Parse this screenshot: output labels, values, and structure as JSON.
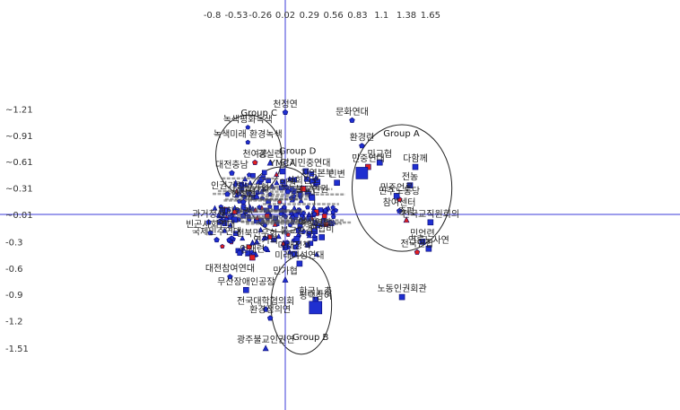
{
  "chart_data": {
    "type": "scatter",
    "title": "",
    "xlabel": "",
    "ylabel": "",
    "xlim": [
      -0.93,
      1.72
    ],
    "ylim": [
      -1.58,
      1.42
    ],
    "x_ticks": [
      {
        "v": -0.8,
        "label": "-0.8"
      },
      {
        "v": -0.53,
        "label": "-0.53"
      },
      {
        "v": -0.26,
        "label": "-0.26"
      },
      {
        "v": 0.02,
        "label": "0.02"
      },
      {
        "v": 0.29,
        "label": "0.29"
      },
      {
        "v": 0.56,
        "label": "0.56"
      },
      {
        "v": 0.83,
        "label": "0.83"
      },
      {
        "v": 1.1,
        "label": "1.1"
      },
      {
        "v": 1.38,
        "label": "1.38"
      },
      {
        "v": 1.65,
        "label": "1.65"
      }
    ],
    "y_ticks": [
      {
        "v": 1.21,
        "label": "~1.21"
      },
      {
        "v": 0.91,
        "label": "~0.91"
      },
      {
        "v": 0.61,
        "label": "~0.61"
      },
      {
        "v": 0.31,
        "label": "~0.31"
      },
      {
        "v": 0.01,
        "label": "~0.01"
      },
      {
        "v": -0.3,
        "label": "-0.3"
      },
      {
        "v": -0.6,
        "label": "-0.6"
      },
      {
        "v": -0.9,
        "label": "-0.9"
      },
      {
        "v": -1.2,
        "label": "-1.2"
      },
      {
        "v": -1.51,
        "label": "-1.51"
      }
    ],
    "axis_lines": {
      "x": 0.02,
      "y": 0.01
    },
    "groups": [
      {
        "name": "Group A",
        "cx": 1.33,
        "cy": 0.31,
        "rx": 0.56,
        "ry": 0.72,
        "label_x": 1.12,
        "label_y": 0.9
      },
      {
        "name": "Group B",
        "cx": 0.2,
        "cy": -1.02,
        "rx": 0.34,
        "ry": 0.56,
        "label_x": 0.1,
        "label_y": -1.42
      },
      {
        "name": "Group C",
        "cx": -0.39,
        "cy": 0.68,
        "rx": 0.37,
        "ry": 0.46,
        "label_x": -0.48,
        "label_y": 1.13
      },
      {
        "name": "Group D",
        "cx": -0.02,
        "cy": 0.18,
        "rx": 0.37,
        "ry": 0.37,
        "label_x": -0.05,
        "label_y": 0.7
      }
    ],
    "points": [
      {
        "label": "천정연",
        "x": 0.02,
        "y": 1.17,
        "shape": "pentagon",
        "color": "blue",
        "size": 6
      },
      {
        "label": "문화연대",
        "x": 0.77,
        "y": 1.08,
        "shape": "pentagon",
        "color": "blue",
        "size": 6
      },
      {
        "label": "녹색평화녹색",
        "x": -0.4,
        "y": 1.0,
        "shape": "pentagon",
        "color": "blue",
        "size": 5
      },
      {
        "label": "녹색미래 환경녹색",
        "x": -0.4,
        "y": 0.83,
        "shape": "pentagon",
        "color": "blue",
        "size": 5
      },
      {
        "label": "환경련",
        "x": 0.88,
        "y": 0.79,
        "shape": "pentagon",
        "color": "blue",
        "size": 6
      },
      {
        "label": "민교협",
        "x": 1.08,
        "y": 0.6,
        "shape": "square",
        "color": "blue",
        "size": 6
      },
      {
        "label": "민중연대",
        "x": 0.95,
        "y": 0.55,
        "shape": "square",
        "color": "red",
        "size": 6
      },
      {
        "label": "",
        "x": 0.88,
        "y": 0.48,
        "shape": "square",
        "color": "blue",
        "size": 13
      },
      {
        "label": "다함께",
        "x": 1.48,
        "y": 0.55,
        "shape": "square",
        "color": "blue",
        "size": 6
      },
      {
        "label": "전농",
        "x": 1.42,
        "y": 0.34,
        "shape": "square",
        "color": "blue",
        "size": 6
      },
      {
        "label": "민변",
        "x": 0.6,
        "y": 0.37,
        "shape": "square",
        "color": "blue",
        "size": 6
      },
      {
        "label": "민주노동당",
        "x": 1.3,
        "y": 0.18,
        "shape": "pentagon",
        "color": "red",
        "size": 6
      },
      {
        "label": "민주언론",
        "x": 1.27,
        "y": 0.22,
        "shape": "square",
        "color": "blue",
        "size": 6
      },
      {
        "label": "참여센터",
        "x": 1.3,
        "y": 0.05,
        "shape": "pentagon",
        "color": "blue",
        "size": 6
      },
      {
        "label": "총평",
        "x": 1.38,
        "y": -0.05,
        "shape": "triangle",
        "color": "red",
        "size": 6
      },
      {
        "label": "전국교직원회의",
        "x": 1.65,
        "y": -0.08,
        "shape": "square",
        "color": "blue",
        "size": 6
      },
      {
        "label": "민언련",
        "x": 1.56,
        "y": -0.3,
        "shape": "square",
        "color": "blue",
        "size": 6
      },
      {
        "label": "언론노사연",
        "x": 1.63,
        "y": -0.38,
        "shape": "square",
        "color": "blue",
        "size": 6
      },
      {
        "label": "전국연합",
        "x": 1.5,
        "y": -0.42,
        "shape": "pentagon",
        "color": "red",
        "size": 6
      },
      {
        "label": "노동인권회관",
        "x": 1.33,
        "y": -0.93,
        "shape": "square",
        "color": "blue",
        "size": 6
      },
      {
        "label": "천여공",
        "x": -0.32,
        "y": 0.6,
        "shape": "pentagon",
        "color": "red",
        "size": 6
      },
      {
        "label": "경실련",
        "x": -0.15,
        "y": 0.6,
        "shape": "triangle",
        "color": "blue",
        "size": 6
      },
      {
        "label": "YMCA",
        "x": -0.01,
        "y": 0.5,
        "shape": "square",
        "color": "blue",
        "size": 6
      },
      {
        "label": "경기민중연대",
        "x": 0.25,
        "y": 0.5,
        "shape": "square",
        "color": "blue",
        "size": 6
      },
      {
        "label": "대전충남",
        "x": -0.58,
        "y": 0.48,
        "shape": "pentagon",
        "color": "blue",
        "size": 6
      },
      {
        "label": "지역본부",
        "x": 0.38,
        "y": 0.38,
        "shape": "square",
        "color": "blue",
        "size": 6
      },
      {
        "label": "인권",
        "x": 0.05,
        "y": 0.27,
        "shape": "pentagon",
        "color": "blue",
        "size": 6
      },
      {
        "label": "사회진보",
        "x": 0.22,
        "y": 0.3,
        "shape": "square",
        "color": "red",
        "size": 6
      },
      {
        "label": "불교인권",
        "x": 0.32,
        "y": 0.2,
        "shape": "square",
        "color": "blue",
        "size": 6
      },
      {
        "label": "인권기링",
        "x": -0.63,
        "y": 0.24,
        "shape": "pentagon",
        "color": "blue",
        "size": 6
      },
      {
        "label": "한청협",
        "x": -0.45,
        "y": 0.15,
        "shape": "pentagon",
        "color": "blue",
        "size": 6
      },
      {
        "label": "민가협",
        "x": -0.3,
        "y": 0.22,
        "shape": "triangle",
        "color": "blue",
        "size": 6
      },
      {
        "label": "과거청산",
        "x": -0.84,
        "y": -0.08,
        "shape": "pentagon",
        "color": "blue",
        "size": 6
      },
      {
        "label": "빈곤사회연대",
        "x": -0.82,
        "y": -0.2,
        "shape": "pentagon",
        "color": "blue",
        "size": 6
      },
      {
        "label": "국제민주연대",
        "x": -0.75,
        "y": -0.28,
        "shape": "pentagon",
        "color": "blue",
        "size": 6
      },
      {
        "label": "평화인권",
        "x": -0.55,
        "y": -0.05,
        "shape": "square",
        "color": "blue",
        "size": 6
      },
      {
        "label": "전북민우회",
        "x": -0.3,
        "y": -0.3,
        "shape": "triangle",
        "color": "blue",
        "size": 6
      },
      {
        "label": "연기회",
        "x": -0.2,
        "y": -0.38,
        "shape": "pentagon",
        "color": "blue",
        "size": 6
      },
      {
        "label": "언개련",
        "x": -0.35,
        "y": -0.48,
        "shape": "square",
        "color": "red",
        "size": 6
      },
      {
        "label": "여성연합",
        "x": 0.35,
        "y": -0.18,
        "shape": "square",
        "color": "blue",
        "size": 6
      },
      {
        "label": "불교환경",
        "x": 0.15,
        "y": -0.27,
        "shape": "square",
        "color": "blue",
        "size": 6
      },
      {
        "label": "연합비",
        "x": 0.43,
        "y": -0.25,
        "shape": "square",
        "color": "blue",
        "size": 6
      },
      {
        "label": "미래정책",
        "x": 0.12,
        "y": -0.44,
        "shape": "square",
        "color": "blue",
        "size": 6
      },
      {
        "label": "미래여성연대",
        "x": 0.18,
        "y": -0.55,
        "shape": "square",
        "color": "blue",
        "size": 6
      },
      {
        "label": "대전참여연대",
        "x": -0.6,
        "y": -0.7,
        "shape": "pentagon",
        "color": "blue",
        "size": 6
      },
      {
        "label": "민가협",
        "x": 0.02,
        "y": -0.73,
        "shape": "triangle",
        "color": "blue",
        "size": 6
      },
      {
        "label": "무산장애인공장",
        "x": -0.42,
        "y": -0.85,
        "shape": "square",
        "color": "blue",
        "size": 6
      },
      {
        "label": "한국노총",
        "x": 0.36,
        "y": -0.96,
        "shape": "square",
        "color": "blue",
        "size": 6
      },
      {
        "label": "평택참여",
        "x": 0.36,
        "y": -1.05,
        "shape": "square",
        "color": "blue",
        "size": 14
      },
      {
        "label": "전국대학협의회",
        "x": -0.2,
        "y": -1.07,
        "shape": "pentagon",
        "color": "blue",
        "size": 6
      },
      {
        "label": "환경정의연",
        "x": -0.15,
        "y": -1.17,
        "shape": "pentagon",
        "color": "blue",
        "size": 6
      },
      {
        "label": "광주불교인권연",
        "x": -0.2,
        "y": -1.51,
        "shape": "triangle",
        "color": "blue",
        "size": 6
      }
    ]
  }
}
